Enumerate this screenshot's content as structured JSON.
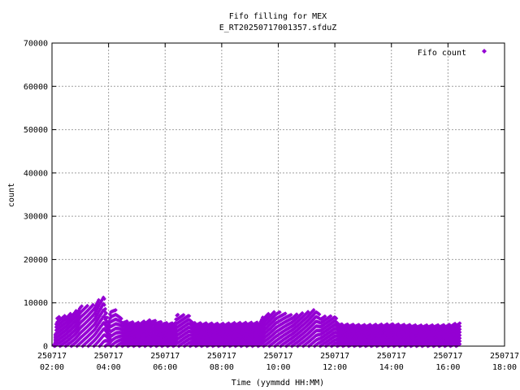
{
  "chart_data": {
    "type": "scatter",
    "title": "Fifo filling for MEX",
    "subtitle": "E_RT20250717001357.sfduZ",
    "xlabel": "Time (yymmdd HH:MM)",
    "ylabel": "count",
    "xlim": [
      "250717 02:00",
      "250717 18:00"
    ],
    "ylim": [
      0,
      70000
    ],
    "x_ticks": [
      {
        "date": "250717",
        "time": "02:00"
      },
      {
        "date": "250717",
        "time": "04:00"
      },
      {
        "date": "250717",
        "time": "06:00"
      },
      {
        "date": "250717",
        "time": "08:00"
      },
      {
        "date": "250717",
        "time": "10:00"
      },
      {
        "date": "250717",
        "time": "12:00"
      },
      {
        "date": "250717",
        "time": "14:00"
      },
      {
        "date": "250717",
        "time": "16:00"
      },
      {
        "date": "250717",
        "time": "18:00"
      }
    ],
    "y_ticks": [
      "0",
      "10000",
      "20000",
      "30000",
      "40000",
      "50000",
      "60000",
      "70000"
    ],
    "grid": true,
    "legend_position": "top-right",
    "series": [
      {
        "name": "Fifo count",
        "color": "#9400d3",
        "marker": "diamond",
        "time_range": [
          "250717 02:05",
          "250717 16:25"
        ],
        "envelope_max": [
          [
            "02:05",
            500
          ],
          [
            "02:10",
            6800
          ],
          [
            "02:30",
            7200
          ],
          [
            "02:50",
            8200
          ],
          [
            "03:00",
            9400
          ],
          [
            "03:15",
            9500
          ],
          [
            "03:30",
            9800
          ],
          [
            "03:40",
            11000
          ],
          [
            "03:50",
            11800
          ],
          [
            "04:00",
            5200
          ],
          [
            "04:05",
            9000
          ],
          [
            "04:15",
            8500
          ],
          [
            "04:30",
            6000
          ],
          [
            "05:00",
            5500
          ],
          [
            "05:30",
            6200
          ],
          [
            "06:00",
            5500
          ],
          [
            "06:20",
            5400
          ],
          [
            "06:25",
            7400
          ],
          [
            "06:50",
            7300
          ],
          [
            "07:00",
            5500
          ],
          [
            "08:00",
            5300
          ],
          [
            "08:30",
            5500
          ],
          [
            "09:20",
            5600
          ],
          [
            "09:30",
            7300
          ],
          [
            "09:55",
            8200
          ],
          [
            "10:30",
            7300
          ],
          [
            "11:00",
            8000
          ],
          [
            "11:20",
            8700
          ],
          [
            "11:30",
            7000
          ],
          [
            "12:00",
            7100
          ],
          [
            "12:10",
            5200
          ],
          [
            "13:00",
            5000
          ],
          [
            "14:00",
            5200
          ],
          [
            "15:00",
            4900
          ],
          [
            "16:00",
            5000
          ],
          [
            "16:25",
            5500
          ]
        ]
      }
    ]
  }
}
